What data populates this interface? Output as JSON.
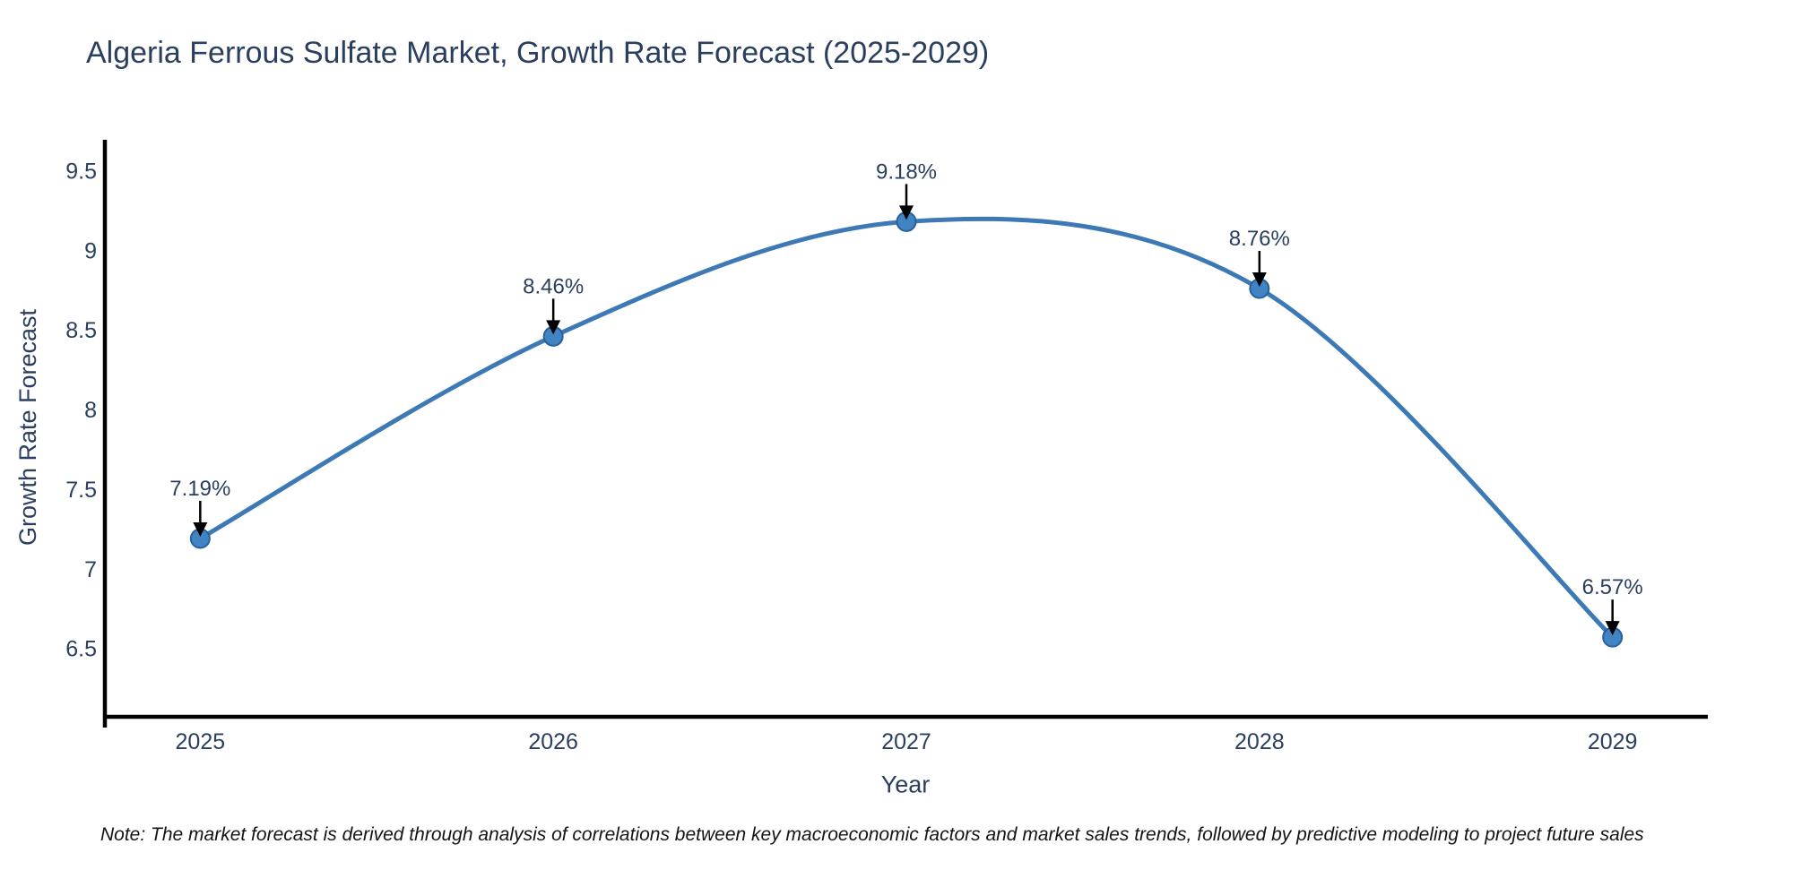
{
  "page": {
    "title": "Algeria Ferrous Sulfate Market, Growth Rate Forecast (2025-2029)",
    "note": "Note: The market forecast is derived through analysis of correlations between key macroeconomic factors and market sales trends, followed by predictive modeling to project future sales"
  },
  "chart_data": {
    "type": "line",
    "title": "Algeria Ferrous Sulfate Market, Growth Rate Forecast (2025-2029)",
    "xlabel": "Year",
    "ylabel": "Growth Rate Forecast",
    "x": [
      2025,
      2026,
      2027,
      2028,
      2029
    ],
    "x_tick_labels": [
      "2025",
      "2026",
      "2027",
      "2028",
      "2029"
    ],
    "series": [
      {
        "name": "Growth Rate Forecast",
        "values": [
          7.19,
          8.46,
          9.18,
          8.76,
          6.57
        ]
      }
    ],
    "point_labels": [
      "7.19%",
      "8.46%",
      "9.18%",
      "8.76%",
      "6.57%"
    ],
    "yticks": [
      6.5,
      7,
      7.5,
      8,
      8.5,
      9,
      9.5
    ],
    "ytick_labels": [
      "6.5",
      "7",
      "7.5",
      "8",
      "8.5",
      "9",
      "9.5"
    ],
    "xlim": [
      2024.73,
      2029.27
    ],
    "ylim": [
      6.07,
      9.7
    ],
    "grid": false,
    "legend": "none",
    "line_shape": "spline",
    "annotation_style": "label-above-with-down-arrow",
    "colors": {
      "line": "#3d7ab5",
      "marker_fill": "#4184c4",
      "marker_edge": "#2a6099",
      "axis": "#000000",
      "text": "#2a3f5f",
      "arrow": "#000000",
      "note_text": "#141414",
      "background": "#ffffff"
    }
  }
}
